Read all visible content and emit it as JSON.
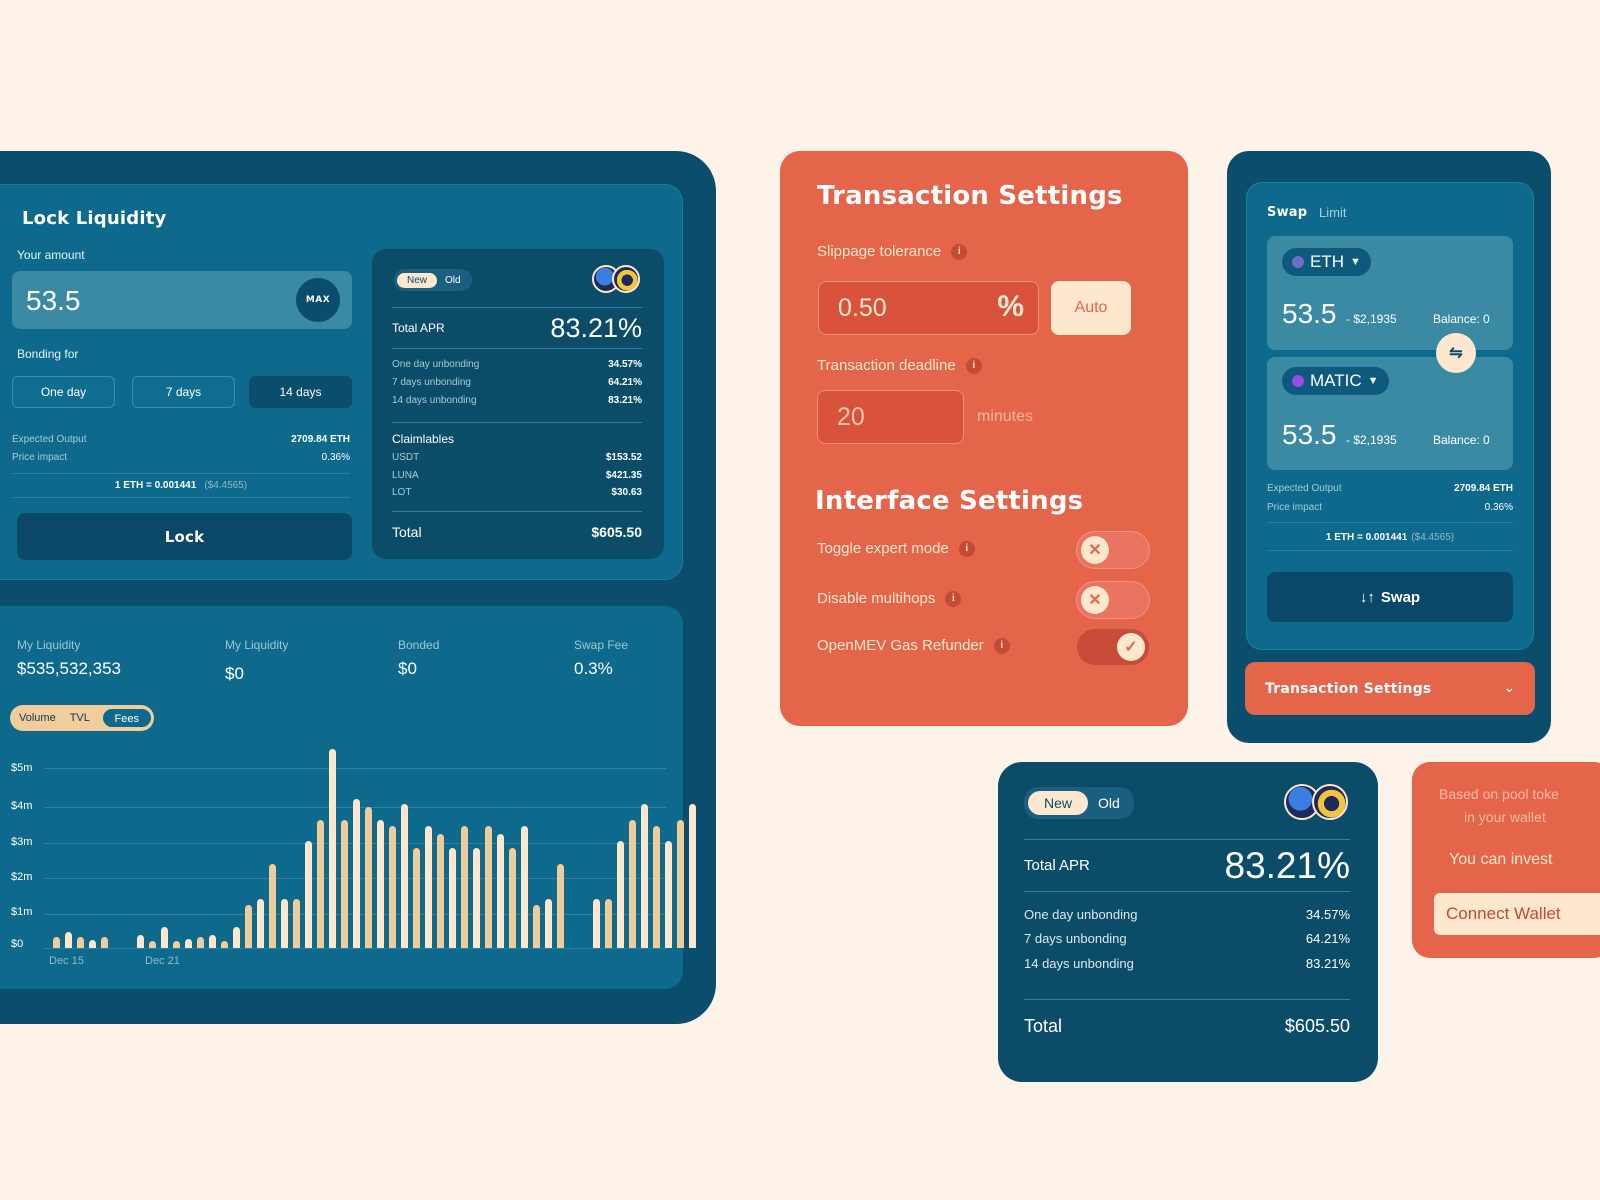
{
  "lock": {
    "title": "Lock Liquidity",
    "amount_label": "Your amount",
    "amount_value": "53.5",
    "max_label": "MAX",
    "bonding_label": "Bonding for",
    "bonding_options": [
      "One day",
      "7 days",
      "14 days"
    ],
    "bonding_selected": "14 days",
    "expected_output_label": "Expected Output",
    "expected_output_value": "2709.84 ETH",
    "price_impact_label": "Price impact",
    "price_impact_value": "0.36%",
    "rate": "1 ETH = 0.001441",
    "rate_usd": "($4.4565)",
    "lock_button": "Lock"
  },
  "apr_small": {
    "toggle": [
      "New",
      "Old"
    ],
    "toggle_selected": "New",
    "total_apr_label": "Total APR",
    "total_apr_value": "83.21%",
    "rows": [
      {
        "label": "One day unbonding",
        "value": "34.57%"
      },
      {
        "label": "7 days unbonding",
        "value": "64.21%"
      },
      {
        "label": "14 days unbonding",
        "value": "83.21%"
      }
    ],
    "claimables_label": "Claimlables",
    "claimables": [
      {
        "token": "USDT",
        "value": "$153.52"
      },
      {
        "token": "LUNA",
        "value": "$421.35"
      },
      {
        "token": "LOT",
        "value": "$30.63"
      }
    ],
    "total_label": "Total",
    "total_value": "$605.50"
  },
  "stats": {
    "items": [
      {
        "label": "My Liquidity",
        "value": "$535,532,353"
      },
      {
        "label": "My Liquidity",
        "value": "$0"
      },
      {
        "label": "Bonded",
        "value": "$0"
      },
      {
        "label": "Swap Fee",
        "value": "0.3%"
      }
    ],
    "chart_tabs": [
      "Volume",
      "TVL",
      "Fees"
    ],
    "chart_tab_selected": "Fees"
  },
  "chart_data": {
    "type": "bar",
    "title": "",
    "xlabel": "",
    "ylabel": "",
    "y_ticks": [
      "$0",
      "$1m",
      "$2m",
      "$3m",
      "$4m",
      "$5m"
    ],
    "x_ticks": [
      "Dec 15",
      "Dec 21"
    ],
    "ylim": [
      0,
      5.6
    ],
    "grid": true,
    "units": "$m",
    "values": [
      0.3,
      0.45,
      0.3,
      0.23,
      0.3,
      null,
      0.37,
      0.2,
      0.58,
      0.2,
      0.26,
      0.3,
      0.37,
      0.2,
      0.58,
      1.22,
      1.37,
      2.36,
      1.37,
      1.37,
      3.0,
      3.6,
      5.6,
      3.6,
      4.2,
      3.97,
      3.6,
      3.45,
      4.07,
      2.82,
      3.45,
      3.2,
      2.82,
      3.45,
      2.82,
      3.45,
      3.2,
      2.82,
      3.45,
      1.22,
      1.37,
      2.36,
      null,
      1.37,
      1.37,
      3.0,
      3.6,
      4.07,
      3.45,
      3.0,
      3.6,
      4.07
    ],
    "colors": {
      "dark": "#f0cb9b",
      "light": "#fde8cf"
    }
  },
  "tx_settings": {
    "title": "Transaction Settings",
    "slippage_label": "Slippage tolerance",
    "slippage_value": "0.50",
    "slippage_unit": "%",
    "auto_label": "Auto",
    "deadline_label": "Transaction deadline",
    "deadline_value": "20",
    "deadline_unit": "minutes",
    "interface_title": "Interface Settings",
    "toggles": [
      {
        "label": "Toggle expert mode",
        "on": false
      },
      {
        "label": "Disable multihops",
        "on": false
      },
      {
        "label": "OpenMEV Gas Refunder",
        "on": true
      }
    ],
    "info_glyph": "i"
  },
  "swap": {
    "tabs": [
      "Swap",
      "Limit"
    ],
    "tab_selected": "Swap",
    "from_token": "ETH",
    "from_amount": "53.5",
    "from_usd": "- $2,1935",
    "from_balance": "Balance: 0",
    "to_token": "MATIC",
    "to_amount": "53.5",
    "to_usd": "- $2,1935",
    "to_balance": "Balance: 0",
    "expected_output_label": "Expected Output",
    "expected_output_value": "2709.84 ETH",
    "price_impact_label": "Price impact",
    "price_impact_value": "0.36%",
    "rate": "1 ETH = 0.001441",
    "rate_usd": "($4.4565)",
    "swap_button": "Swap",
    "swap_icon": "↓↑",
    "tx_settings_label": "Transaction Settings"
  },
  "apr_large": {
    "toggle": [
      "New",
      "Old"
    ],
    "toggle_selected": "New",
    "total_apr_label": "Total APR",
    "total_apr_value": "83.21%",
    "rows": [
      {
        "label": "One day unbonding",
        "value": "34.57%"
      },
      {
        "label": "7 days unbonding",
        "value": "64.21%"
      },
      {
        "label": "14 days unbonding",
        "value": "83.21%"
      }
    ],
    "total_label": "Total",
    "total_value": "$605.50"
  },
  "wallet": {
    "hint_line1": "Based on pool toke",
    "hint_line2": "in your wallet",
    "invest_text": "You can invest",
    "connect_button": "Connect Wallet"
  },
  "colors": {
    "background": "#fdf3e8",
    "navy": "#0a4d6c",
    "teal": "#0e6a8c",
    "coral": "#e5654b",
    "cream": "#fde8cf",
    "bar_orange": "#f0cb9b"
  }
}
